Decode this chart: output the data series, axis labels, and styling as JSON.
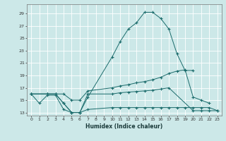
{
  "xlabel": "Humidex (Indice chaleur)",
  "bg_color": "#cce8e8",
  "grid_color": "#ffffff",
  "line_color": "#1a6b6b",
  "xlim": [
    -0.5,
    23.5
  ],
  "ylim": [
    12.5,
    30.5
  ],
  "xticks": [
    0,
    1,
    2,
    3,
    4,
    5,
    6,
    7,
    8,
    9,
    10,
    11,
    12,
    13,
    14,
    15,
    16,
    17,
    18,
    19,
    20,
    21,
    22,
    23
  ],
  "yticks": [
    13,
    15,
    17,
    19,
    21,
    23,
    25,
    27,
    29
  ],
  "line1_x": [
    0,
    1,
    2,
    3,
    4,
    5,
    6,
    7,
    10,
    11,
    12,
    13,
    14,
    15,
    16,
    17,
    18,
    19,
    20
  ],
  "line1_y": [
    16.0,
    14.5,
    15.8,
    15.8,
    13.5,
    13.0,
    13.0,
    15.5,
    22.0,
    24.5,
    26.5,
    27.5,
    29.2,
    29.2,
    28.2,
    26.5,
    22.5,
    19.8,
    19.8
  ],
  "line2_x": [
    0,
    2,
    3,
    4,
    5,
    6,
    7,
    10,
    11,
    12,
    13,
    14,
    15,
    16,
    17,
    18,
    19,
    20,
    21,
    22
  ],
  "line2_y": [
    16.0,
    16.0,
    16.0,
    16.0,
    15.0,
    15.0,
    16.5,
    17.0,
    17.3,
    17.5,
    17.8,
    18.0,
    18.3,
    18.7,
    19.3,
    19.7,
    19.9,
    15.5,
    15.0,
    14.5
  ],
  "line3_x": [
    0,
    2,
    3,
    4,
    5,
    6,
    7,
    10,
    11,
    12,
    13,
    14,
    15,
    16,
    17,
    20,
    21,
    22,
    23
  ],
  "line3_y": [
    16.0,
    16.0,
    16.0,
    14.5,
    13.0,
    13.0,
    16.0,
    16.0,
    16.2,
    16.3,
    16.4,
    16.5,
    16.6,
    16.8,
    17.0,
    13.3,
    13.3,
    13.3,
    13.3
  ],
  "line4_x": [
    0,
    2,
    3,
    4,
    5,
    6,
    7,
    10,
    11,
    12,
    13,
    14,
    15,
    16,
    17,
    18,
    19,
    20,
    21,
    22,
    23
  ],
  "line4_y": [
    16.0,
    16.0,
    16.0,
    14.5,
    13.0,
    13.0,
    13.5,
    13.8,
    13.8,
    13.8,
    13.8,
    13.8,
    13.8,
    13.8,
    13.8,
    13.8,
    13.8,
    13.8,
    13.8,
    13.8,
    13.3
  ]
}
